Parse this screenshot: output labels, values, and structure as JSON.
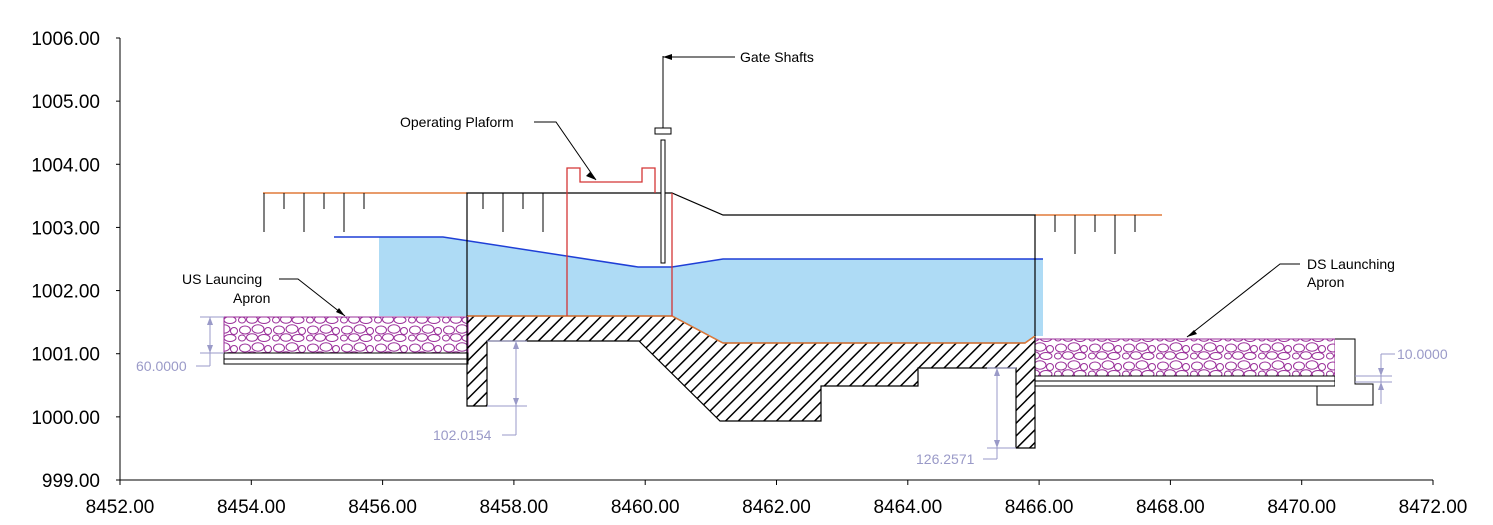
{
  "chart_data": {
    "type": "diagram",
    "title": "",
    "xlabel": "",
    "ylabel": "",
    "xlim": [
      8452,
      8472
    ],
    "ylim": [
      999,
      1006
    ],
    "x_ticks": [
      "8452.00",
      "8454.00",
      "8456.00",
      "8458.00",
      "8460.00",
      "8462.00",
      "8464.00",
      "8466.00",
      "8468.00",
      "8470.00",
      "8472.00"
    ],
    "y_ticks": [
      "999.00",
      "1000.00",
      "1001.00",
      "1002.00",
      "1003.00",
      "1004.00",
      "1005.00",
      "1006.00"
    ],
    "callouts": {
      "gate_shafts": "Gate Shafts",
      "operating_platform": "Operating Plaform",
      "us_apron_line1": "US Launcing",
      "us_apron_line2": "Apron",
      "ds_apron_line1": "DS Launching",
      "ds_apron_line2": "Apron"
    },
    "dimensions": {
      "us_apron_thickness": "60.0000",
      "us_cutoff_depth": "102.0154",
      "ds_cutoff_depth": "126.2571",
      "ds_apron_offset": "10.0000"
    },
    "water_surface_profile": [
      [
        8454.7,
        1002.87
      ],
      [
        8456.0,
        1002.87
      ],
      [
        8459.6,
        1002.38
      ],
      [
        8460.0,
        1002.38
      ],
      [
        8460.8,
        1002.5
      ],
      [
        8465.9,
        1002.5
      ]
    ],
    "bed_profile": [
      [
        8456.7,
        1001.59
      ],
      [
        8460.0,
        1001.59
      ],
      [
        8460.8,
        1001.18
      ],
      [
        8465.4,
        1001.18
      ],
      [
        8465.9,
        1001.25
      ]
    ],
    "ground_level_us": 1003.55,
    "ground_level_ds": 1003.2
  },
  "colors": {
    "water": "#aedbf5",
    "water_line": "#1f3fd6",
    "ground_line": "#e07a3a",
    "platform": "#d43535",
    "apron_stroke": "#9a2f9a",
    "dimension": "#9a9ac8",
    "hatch": "#000000"
  }
}
